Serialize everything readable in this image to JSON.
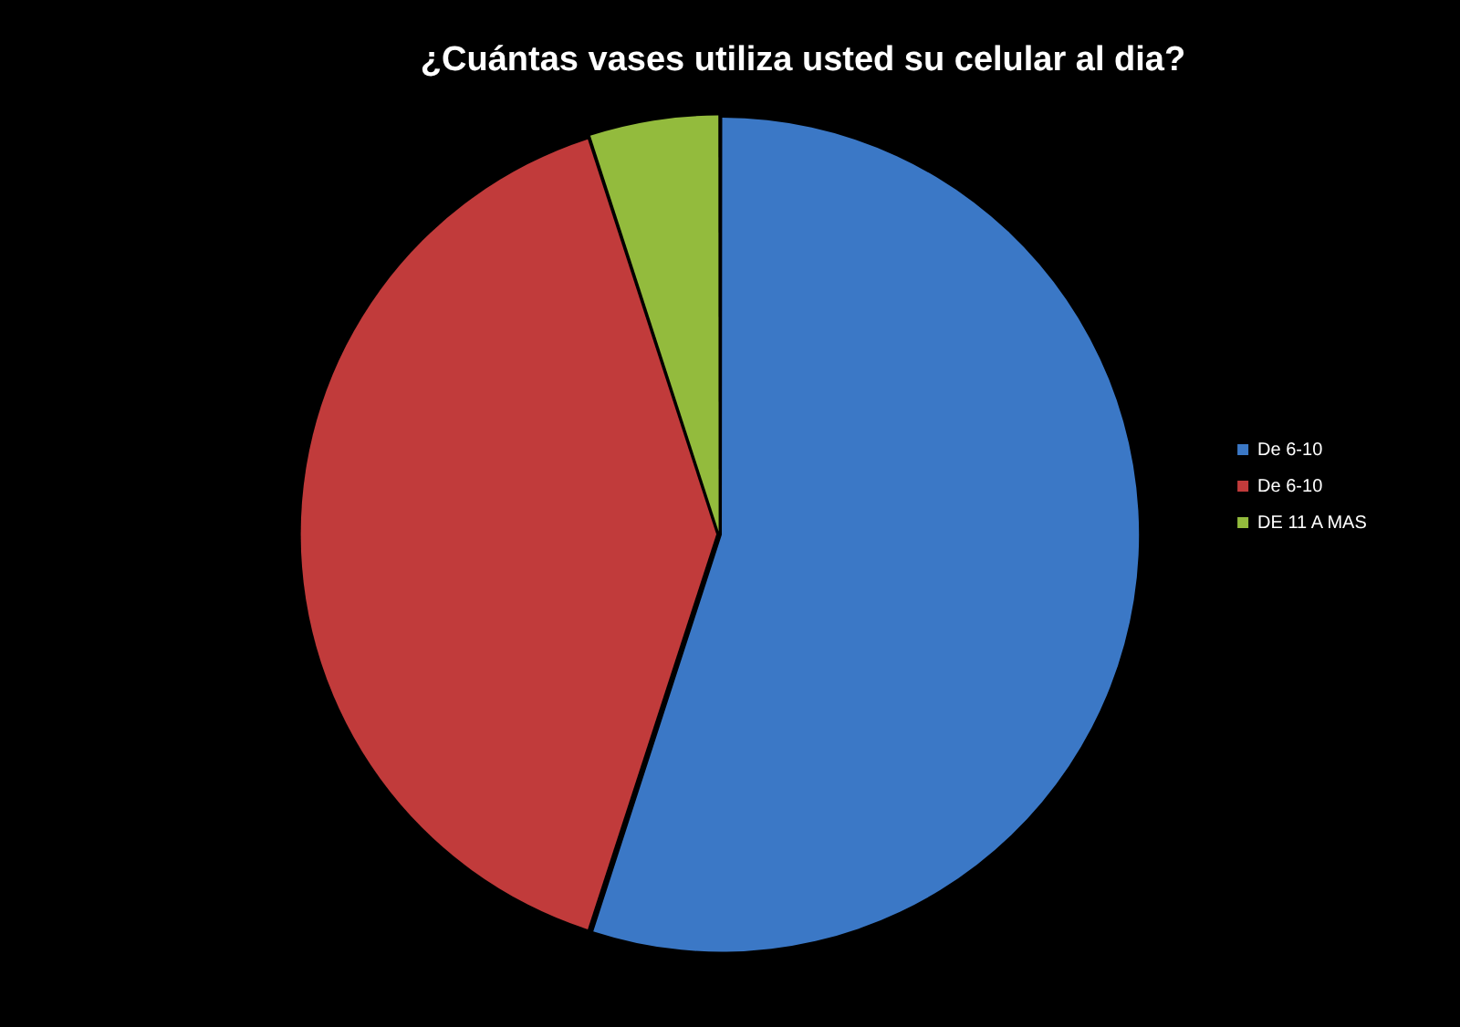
{
  "chart_data": {
    "type": "pie",
    "title": "¿Cuántas vases utiliza usted su celular al dia?",
    "categories": [
      "De 6-10",
      "De 6-10",
      "DE 11 A MAS"
    ],
    "values": [
      55,
      40,
      5
    ],
    "colors": [
      "#3b78c6",
      "#c13b3b",
      "#93bb3d"
    ],
    "legend": "right"
  }
}
